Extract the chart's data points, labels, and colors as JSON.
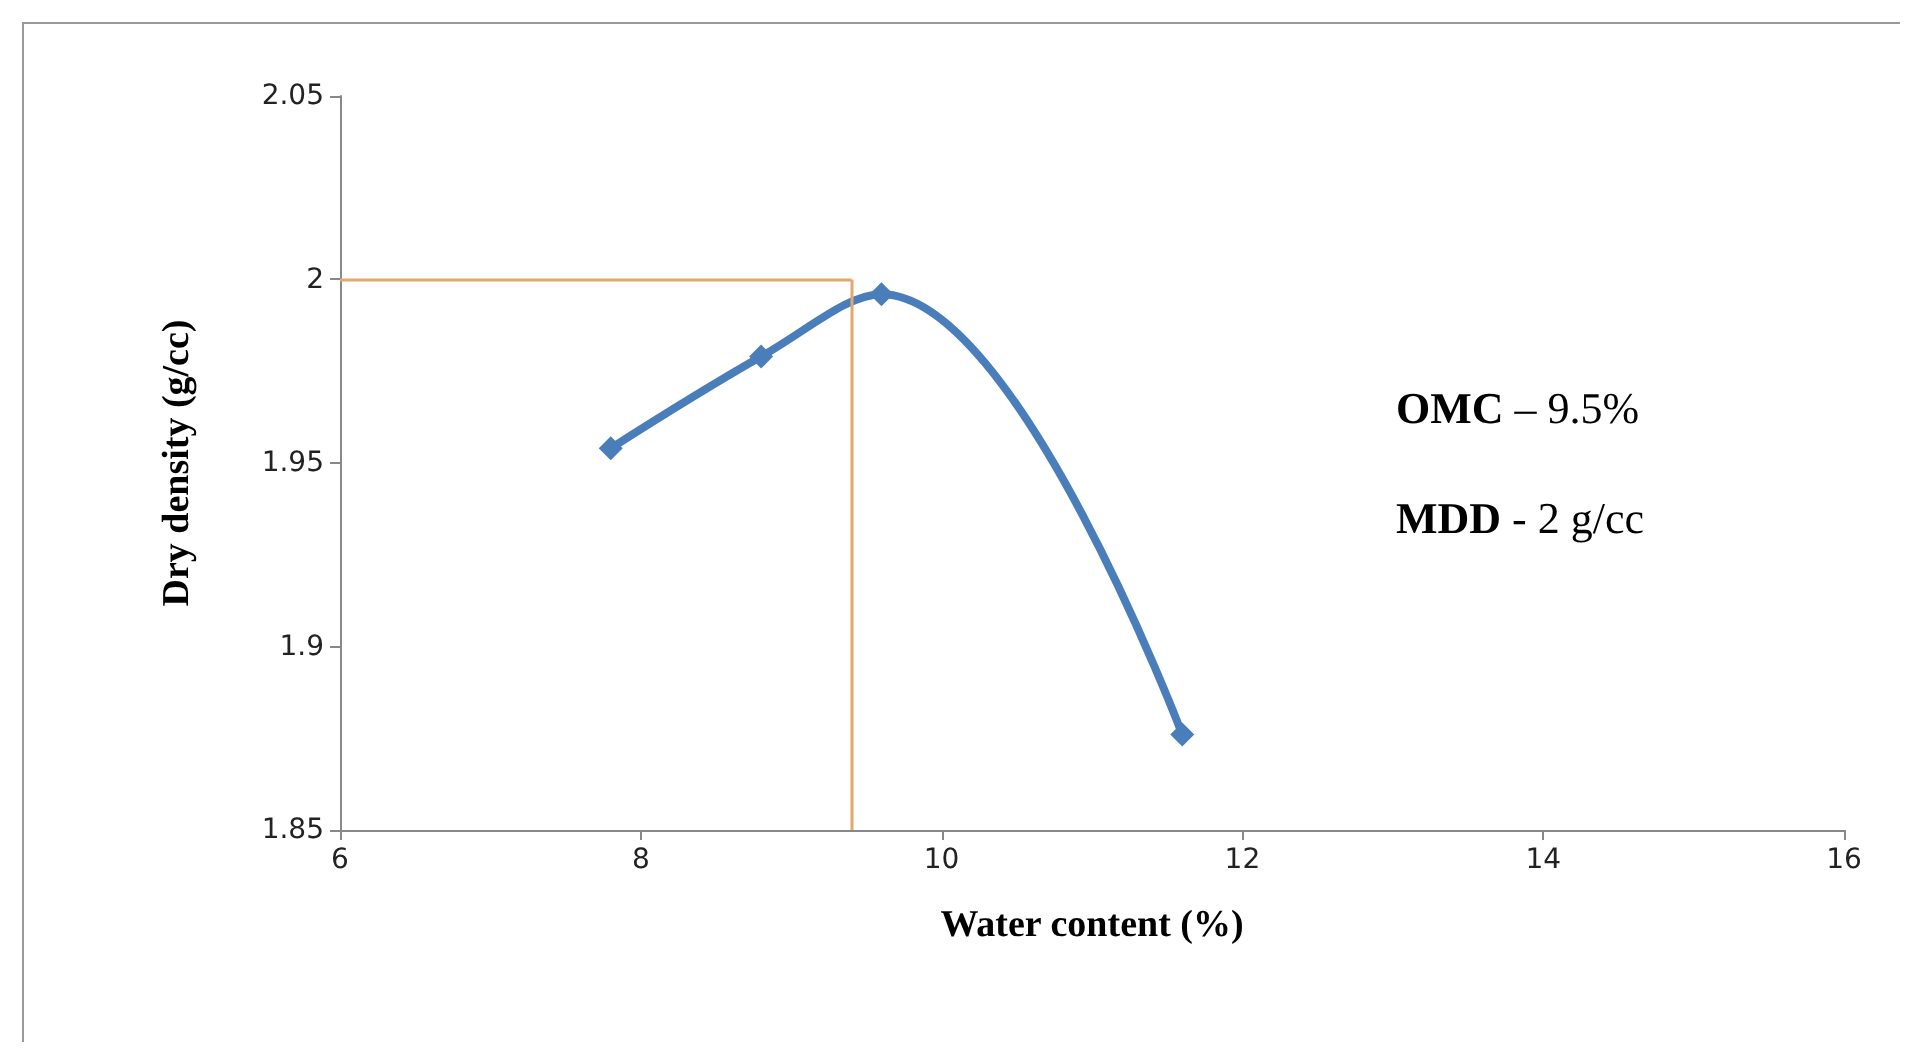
{
  "chart_data": {
    "type": "line",
    "xlabel": "Water content (%)",
    "ylabel": "Dry density (g/cc)",
    "x": [
      7.8,
      8.8,
      9.6,
      11.6
    ],
    "series": [
      {
        "color": "#4a7ebb",
        "values": [
          1.954,
          1.979,
          1.996,
          1.876
        ]
      }
    ],
    "xlim": [
      6,
      16
    ],
    "xticks": [
      6,
      8,
      10,
      12,
      14,
      16
    ],
    "ylim": [
      1.85,
      2.05
    ],
    "yticks": [
      1.85,
      1.9,
      1.95,
      2,
      2.05
    ],
    "marker": "diamond",
    "line_style": "solid",
    "ref_lines": [
      {
        "axis": "y",
        "value": 2,
        "color": "#e3a86b"
      },
      {
        "axis": "x",
        "value": 9.4,
        "color": "#e3a86b"
      }
    ],
    "annotations": [
      "OMC – 9.5%",
      "MDD - 2 g/cc"
    ]
  }
}
